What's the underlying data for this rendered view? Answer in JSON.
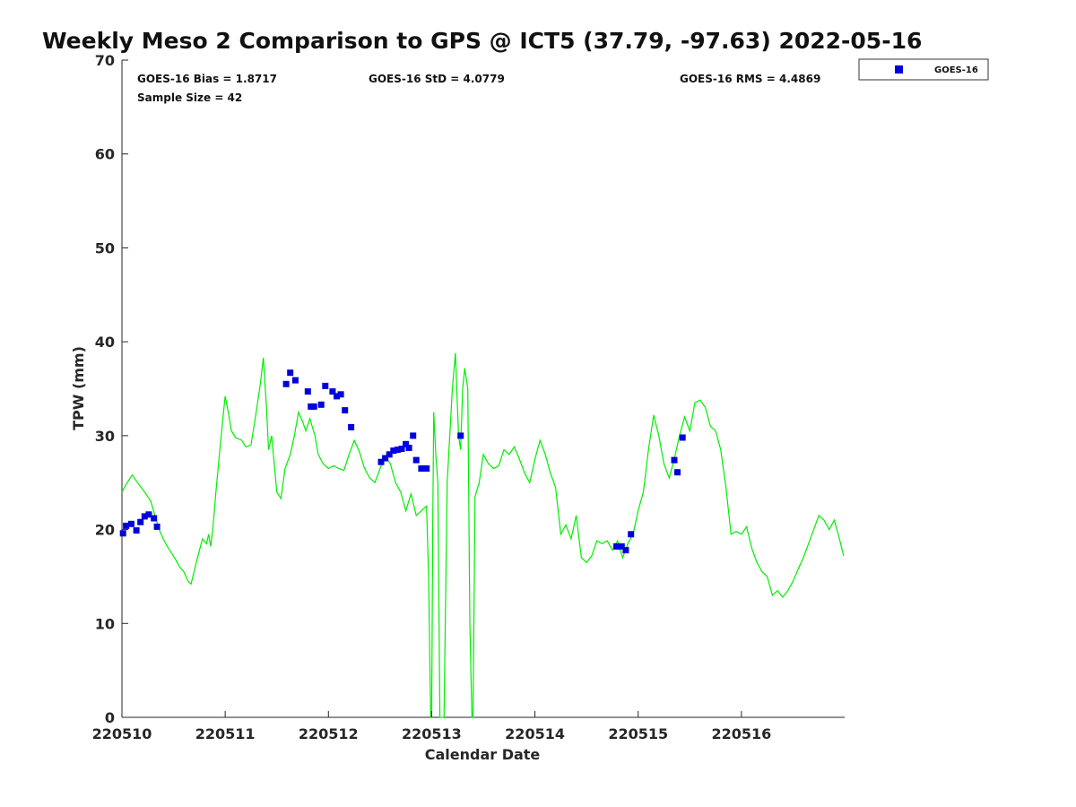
{
  "chart_data": {
    "type": "scatter",
    "title": "Weekly Meso 2 Comparison to GPS @ ICT5 (37.79, -97.63) 2022-05-16",
    "xlabel": "Calendar Date",
    "ylabel": "TPW (mm)",
    "xlim": [
      0,
      7
    ],
    "ylim": [
      0,
      70
    ],
    "x_ticks": [
      0,
      1,
      2,
      3,
      4,
      5,
      6
    ],
    "x_tick_labels": [
      "220510",
      "220511",
      "220512",
      "220513",
      "220514",
      "220515",
      "220516"
    ],
    "y_ticks": [
      0,
      10,
      20,
      30,
      40,
      50,
      60,
      70
    ],
    "y_tick_labels": [
      "0",
      "10",
      "20",
      "30",
      "40",
      "50",
      "60",
      "70"
    ],
    "grid": false,
    "legend_position": "top-right outside",
    "stats": {
      "bias": "GOES-16 Bias = 1.8717",
      "std": "GOES-16 StD = 4.0779",
      "rms": "GOES-16 RMS = 4.4869",
      "sample": "Sample Size = 42"
    },
    "series": [
      {
        "name": "GOES-16",
        "marker": "square",
        "color": "#0000dd",
        "x": [
          0.01,
          0.04,
          0.09,
          0.14,
          0.18,
          0.22,
          0.26,
          0.31,
          0.34,
          1.59,
          1.63,
          1.68,
          1.8,
          1.83,
          1.86,
          1.93,
          1.97,
          2.04,
          2.08,
          2.12,
          2.16,
          2.22,
          2.51,
          2.55,
          2.59,
          2.63,
          2.67,
          2.71,
          2.75,
          2.78,
          2.82,
          2.85,
          2.9,
          2.95,
          3.28,
          4.79,
          4.84,
          4.88,
          4.93,
          5.35,
          5.38,
          5.43
        ],
        "y": [
          19.6,
          20.4,
          20.6,
          19.9,
          20.8,
          21.4,
          21.6,
          21.2,
          20.3,
          35.5,
          36.7,
          35.9,
          34.7,
          33.1,
          33.1,
          33.3,
          35.3,
          34.7,
          34.2,
          34.4,
          32.7,
          30.9,
          27.2,
          27.6,
          28.0,
          28.4,
          28.5,
          28.6,
          29.1,
          28.7,
          30.0,
          27.4,
          26.5,
          26.5,
          30.0,
          18.2,
          18.2,
          17.8,
          19.5,
          27.4,
          26.1,
          29.8
        ]
      }
    ],
    "reference_line": {
      "color": "#00ee00",
      "x": [
        0.0,
        0.05,
        0.1,
        0.15,
        0.22,
        0.28,
        0.32,
        0.36,
        0.4,
        0.44,
        0.48,
        0.52,
        0.56,
        0.6,
        0.64,
        0.67,
        0.72,
        0.78,
        0.82,
        0.84,
        0.86,
        0.88,
        0.91,
        0.94,
        0.97,
        1.0,
        1.03,
        1.06,
        1.1,
        1.16,
        1.2,
        1.25,
        1.3,
        1.34,
        1.37,
        1.4,
        1.42,
        1.45,
        1.5,
        1.54,
        1.58,
        1.63,
        1.67,
        1.71,
        1.75,
        1.78,
        1.82,
        1.87,
        1.9,
        1.95,
        2.0,
        2.05,
        2.1,
        2.15,
        2.2,
        2.25,
        2.3,
        2.35,
        2.4,
        2.45,
        2.5,
        2.55,
        2.6,
        2.65,
        2.7,
        2.75,
        2.8,
        2.85,
        2.9,
        2.95,
        2.97,
        2.99,
        3.0,
        3.01,
        3.02,
        3.04,
        3.06,
        3.08,
        3.1,
        3.12,
        3.15,
        3.2,
        3.23,
        3.26,
        3.28,
        3.3,
        3.32,
        3.35,
        3.37,
        3.39,
        3.4,
        3.42,
        3.46,
        3.5,
        3.55,
        3.6,
        3.65,
        3.7,
        3.75,
        3.8,
        3.85,
        3.9,
        3.95,
        4.0,
        4.05,
        4.1,
        4.15,
        4.2,
        4.25,
        4.3,
        4.35,
        4.4,
        4.45,
        4.5,
        4.55,
        4.6,
        4.65,
        4.7,
        4.75,
        4.8,
        4.85,
        4.9,
        4.95,
        5.0,
        5.05,
        5.1,
        5.15,
        5.2,
        5.25,
        5.3,
        5.35,
        5.4,
        5.45,
        5.5,
        5.55,
        5.6,
        5.65,
        5.7,
        5.75,
        5.8,
        5.85,
        5.9,
        5.95,
        6.0,
        6.05,
        6.1,
        6.15,
        6.2,
        6.25,
        6.3,
        6.35,
        6.4,
        6.45,
        6.5,
        6.55,
        6.6,
        6.65,
        6.7,
        6.75,
        6.8,
        6.85,
        6.9,
        6.95,
        6.99
      ],
      "y": [
        24.0,
        25.0,
        25.8,
        25.0,
        24.0,
        23.0,
        21.5,
        20.0,
        19.0,
        18.2,
        17.5,
        16.8,
        16.0,
        15.5,
        14.5,
        14.2,
        16.5,
        19.0,
        18.5,
        19.5,
        18.2,
        20.0,
        24.0,
        27.5,
        31.0,
        34.2,
        32.5,
        30.5,
        29.8,
        29.5,
        28.8,
        29.0,
        32.5,
        35.5,
        38.3,
        33.0,
        28.5,
        30.0,
        24.0,
        23.3,
        26.5,
        28.0,
        30.0,
        32.5,
        31.5,
        30.5,
        31.8,
        30.0,
        28.0,
        27.0,
        26.5,
        26.8,
        26.5,
        26.3,
        28.0,
        29.5,
        28.3,
        26.5,
        25.5,
        25.0,
        26.5,
        27.8,
        27.0,
        25.0,
        24.0,
        22.0,
        23.8,
        21.5,
        22.0,
        22.5,
        15.0,
        0.0,
        0.0,
        20.0,
        32.5,
        28.0,
        25.0,
        0.0,
        0.0,
        0.0,
        25.0,
        35.0,
        38.8,
        30.0,
        28.5,
        35.0,
        37.2,
        35.0,
        10.0,
        0.0,
        0.0,
        23.5,
        25.0,
        28.0,
        27.0,
        26.5,
        26.8,
        28.5,
        28.0,
        28.8,
        27.5,
        26.0,
        25.0,
        27.5,
        29.5,
        28.0,
        26.0,
        24.5,
        19.5,
        20.5,
        19.0,
        21.5,
        17.0,
        16.5,
        17.2,
        18.8,
        18.5,
        18.8,
        17.8,
        18.8,
        17.0,
        18.5,
        19.5,
        22.0,
        24.0,
        28.5,
        32.2,
        30.0,
        27.0,
        25.5,
        27.5,
        30.0,
        32.0,
        30.5,
        33.5,
        33.8,
        33.0,
        31.0,
        30.5,
        28.5,
        24.5,
        19.5,
        19.8,
        19.5,
        20.3,
        18.0,
        16.5,
        15.5,
        15.0,
        13.0,
        13.5,
        12.8,
        13.5,
        14.5,
        15.8,
        17.0,
        18.5,
        20.0,
        21.5,
        21.0,
        20.0,
        21.0,
        19.0,
        17.2
      ]
    }
  }
}
